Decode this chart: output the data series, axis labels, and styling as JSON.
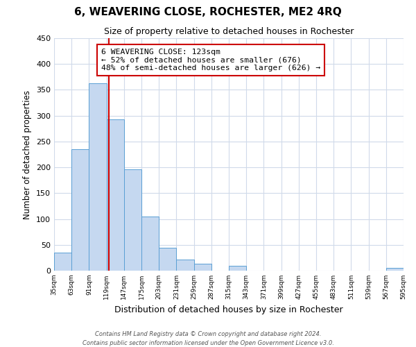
{
  "title": "6, WEAVERING CLOSE, ROCHESTER, ME2 4RQ",
  "subtitle": "Size of property relative to detached houses in Rochester",
  "xlabel": "Distribution of detached houses by size in Rochester",
  "ylabel": "Number of detached properties",
  "bar_left_edges": [
    35,
    63,
    91,
    119,
    147,
    175,
    203,
    231,
    259,
    287,
    315,
    343,
    371,
    399,
    427,
    455,
    483,
    511,
    539,
    567
  ],
  "bar_heights": [
    35,
    235,
    363,
    293,
    196,
    105,
    44,
    22,
    14,
    0,
    10,
    0,
    0,
    0,
    0,
    0,
    0,
    0,
    0,
    5
  ],
  "bin_width": 28,
  "bar_color": "#c5d8f0",
  "bar_edge_color": "#5a9fd4",
  "property_size": 123,
  "vline_color": "#cc0000",
  "annotation_text": "6 WEAVERING CLOSE: 123sqm\n← 52% of detached houses are smaller (676)\n48% of semi-detached houses are larger (626) →",
  "annotation_box_color": "#ffffff",
  "annotation_box_edge_color": "#cc0000",
  "ylim": [
    0,
    450
  ],
  "yticks": [
    0,
    50,
    100,
    150,
    200,
    250,
    300,
    350,
    400,
    450
  ],
  "tick_labels": [
    "35sqm",
    "63sqm",
    "91sqm",
    "119sqm",
    "147sqm",
    "175sqm",
    "203sqm",
    "231sqm",
    "259sqm",
    "287sqm",
    "315sqm",
    "343sqm",
    "371sqm",
    "399sqm",
    "427sqm",
    "455sqm",
    "483sqm",
    "511sqm",
    "539sqm",
    "567sqm",
    "595sqm"
  ],
  "footer_line1": "Contains HM Land Registry data © Crown copyright and database right 2024.",
  "footer_line2": "Contains public sector information licensed under the Open Government Licence v3.0.",
  "background_color": "#ffffff",
  "grid_color": "#d0daea"
}
